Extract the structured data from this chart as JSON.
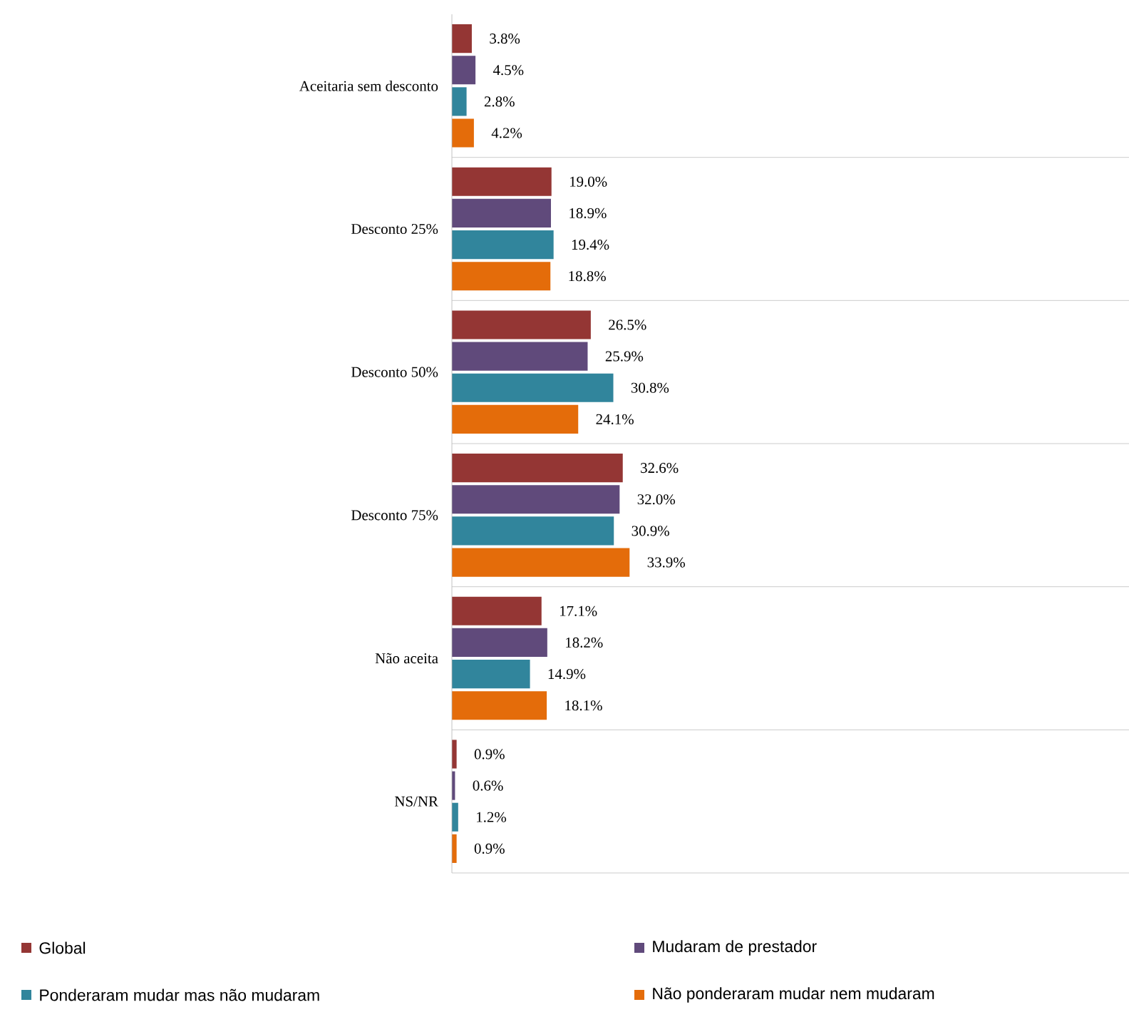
{
  "chart_data": {
    "type": "bar",
    "orientation": "horizontal",
    "categories": [
      "Aceitaria sem desconto",
      "Desconto 25%",
      "Desconto 50%",
      "Desconto 75%",
      "Não aceita",
      "NS/NR"
    ],
    "xlim": [
      0,
      130
    ],
    "grid": "y",
    "legend": "bottom",
    "tick_labels": "y",
    "series": [
      {
        "name": "Global",
        "color": "#943634",
        "values": [
          3.8,
          19.0,
          26.5,
          32.6,
          17.1,
          0.9
        ],
        "value_labels": [
          "3.8%",
          "19.0%",
          "26.5%",
          "32.6%",
          "17.1%",
          "0.9%"
        ]
      },
      {
        "name": "Mudaram de prestador",
        "color": "#604a7b",
        "values": [
          4.5,
          18.9,
          25.9,
          32.0,
          18.2,
          0.6
        ],
        "value_labels": [
          "4.5%",
          "18.9%",
          "25.9%",
          "32.0%",
          "18.2%",
          "0.6%"
        ]
      },
      {
        "name": "Ponderaram mudar mas não mudaram",
        "color": "#31859c",
        "values": [
          2.8,
          19.4,
          30.8,
          30.9,
          14.9,
          1.2
        ],
        "value_labels": [
          "2.8%",
          "19.4%",
          "30.8%",
          "30.9%",
          "14.9%",
          "1.2%"
        ]
      },
      {
        "name": "Não ponderaram mudar nem mudaram",
        "color": "#e46c0a",
        "values": [
          4.2,
          18.8,
          24.1,
          33.9,
          18.1,
          0.9
        ],
        "value_labels": [
          "4.2%",
          "18.8%",
          "24.1%",
          "33.9%",
          "18.1%",
          "0.9%"
        ]
      }
    ]
  }
}
